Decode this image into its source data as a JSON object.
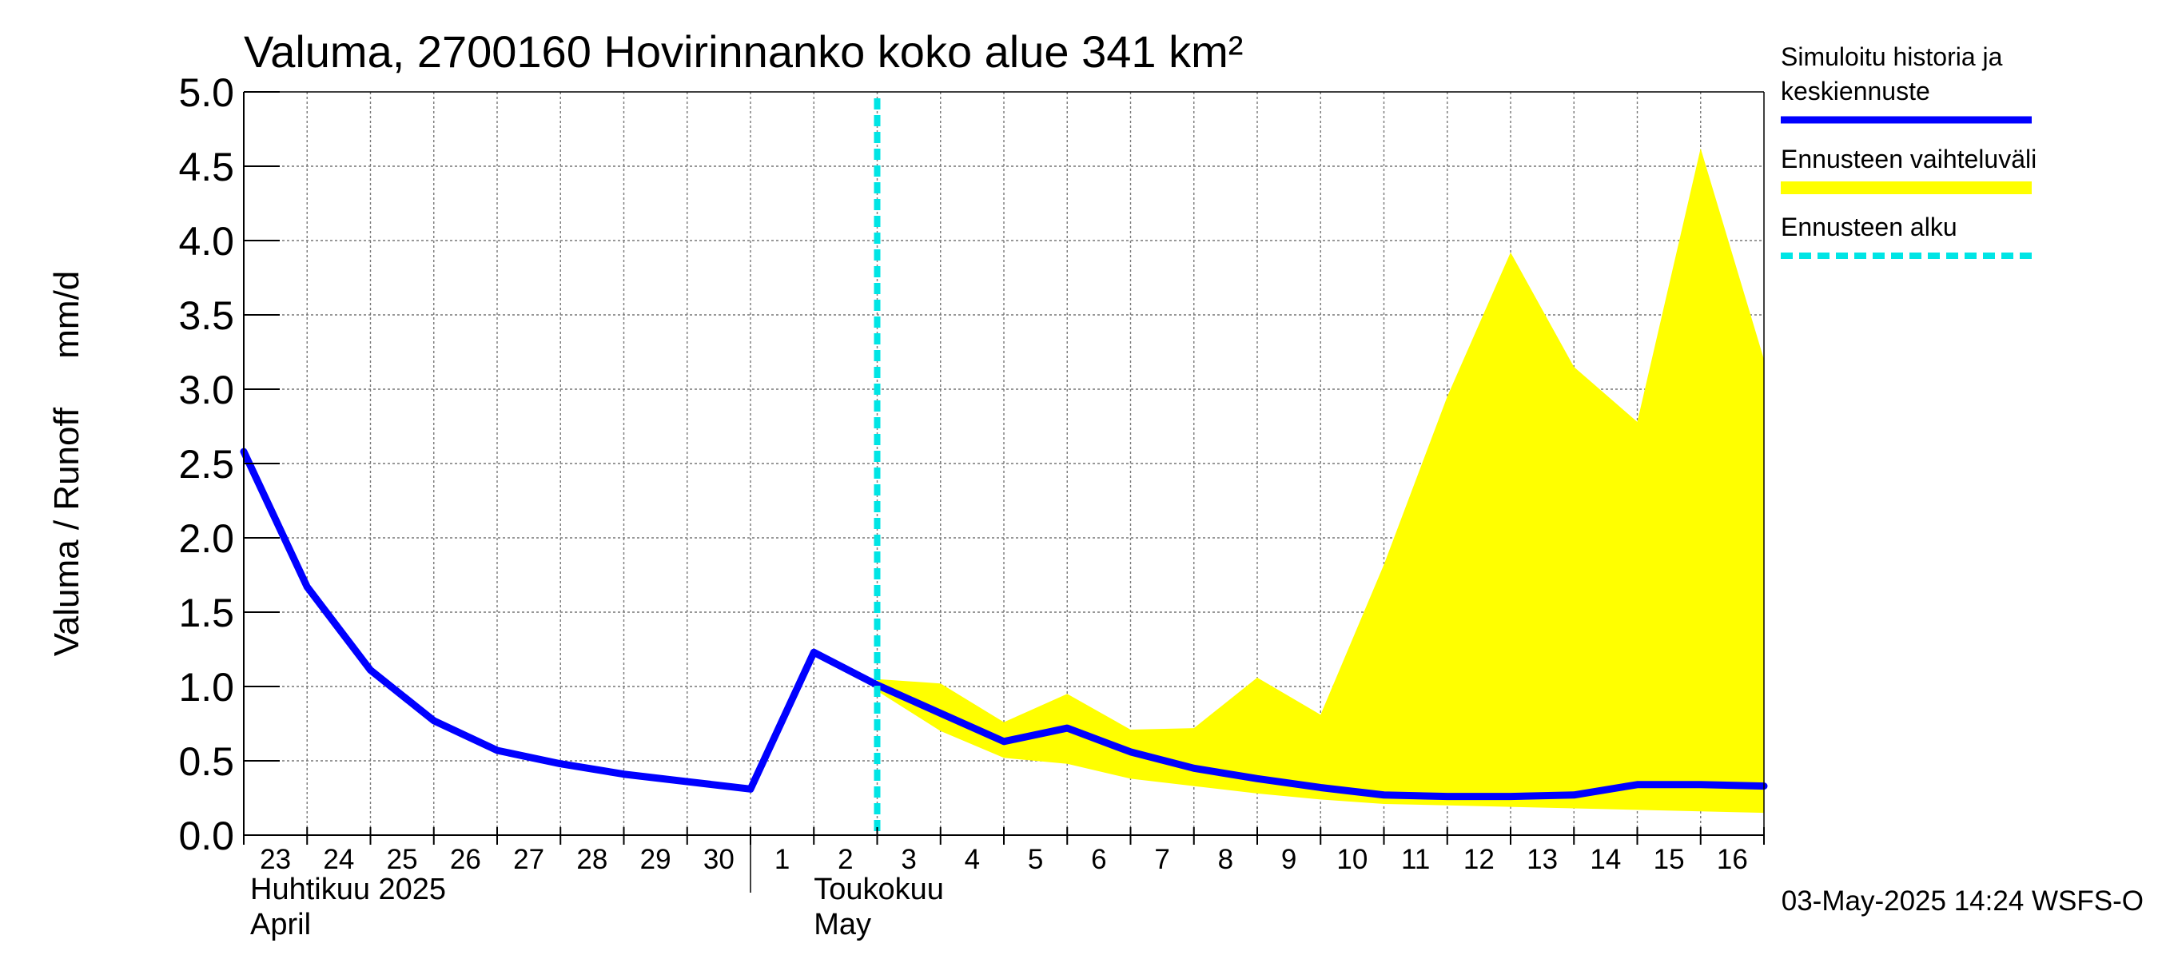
{
  "chart_data": {
    "type": "line",
    "title": "Valuma, 2700160 Hovirinnanko koko alue 341 km²",
    "ylabel": "Valuma / Runoff     mm/d",
    "ylim": [
      0,
      5.0
    ],
    "yticks": [
      "0.0",
      "0.5",
      "1.0",
      "1.5",
      "2.0",
      "2.5",
      "3.0",
      "3.5",
      "4.0",
      "4.5",
      "5.0"
    ],
    "x_day_labels": [
      "23",
      "24",
      "25",
      "26",
      "27",
      "28",
      "29",
      "30",
      "1",
      "2",
      "3",
      "4",
      "5",
      "6",
      "7",
      "8",
      "9",
      "10",
      "11",
      "12",
      "13",
      "14",
      "15",
      "16"
    ],
    "month_labels": [
      {
        "fi": "Huhtikuu  2025",
        "en": "April",
        "start_day_index": 0
      },
      {
        "fi": "Toukokuu",
        "en": "May",
        "start_day_index": 8
      }
    ],
    "forecast_start_day": 10,
    "series": [
      {
        "name": "Simuloitu historia ja keskiennuste",
        "color": "#0000ff",
        "x": [
          0,
          1,
          2,
          3,
          4,
          5,
          6,
          7,
          8,
          9,
          10,
          11,
          12,
          13,
          14,
          15,
          16,
          17,
          18,
          19,
          20,
          21,
          22,
          23,
          24
        ],
        "values": [
          2.58,
          1.67,
          1.11,
          0.77,
          0.57,
          0.48,
          0.41,
          0.36,
          0.31,
          1.23,
          1.01,
          0.82,
          0.63,
          0.72,
          0.56,
          0.45,
          0.38,
          0.32,
          0.27,
          0.26,
          0.26,
          0.27,
          0.34,
          0.34,
          0.33
        ]
      }
    ],
    "band": {
      "name": "Ennusteen vaihteluväli",
      "color": "#ffff00",
      "x": [
        10,
        11,
        12,
        13,
        14,
        15,
        16,
        17,
        18,
        19,
        20,
        21,
        22,
        23,
        24
      ],
      "upper": [
        1.05,
        1.02,
        0.76,
        0.95,
        0.71,
        0.72,
        1.06,
        0.81,
        1.82,
        2.95,
        3.92,
        3.15,
        2.78,
        4.62,
        3.2
      ],
      "lower": [
        0.97,
        0.7,
        0.52,
        0.48,
        0.38,
        0.33,
        0.28,
        0.24,
        0.21,
        0.2,
        0.19,
        0.18,
        0.17,
        0.16,
        0.15
      ]
    },
    "legend": [
      {
        "label_lines": [
          "Simuloitu historia ja",
          "keskiennuste"
        ],
        "style": "solid",
        "color": "#0000ff"
      },
      {
        "label_lines": [
          "Ennusteen vaihteluväli"
        ],
        "style": "band",
        "color": "#ffff00"
      },
      {
        "label_lines": [
          "Ennusteen alku"
        ],
        "style": "dashed",
        "color": "#00e5e5"
      }
    ],
    "grid": true
  },
  "footer": "03-May-2025 14:24 WSFS-O"
}
